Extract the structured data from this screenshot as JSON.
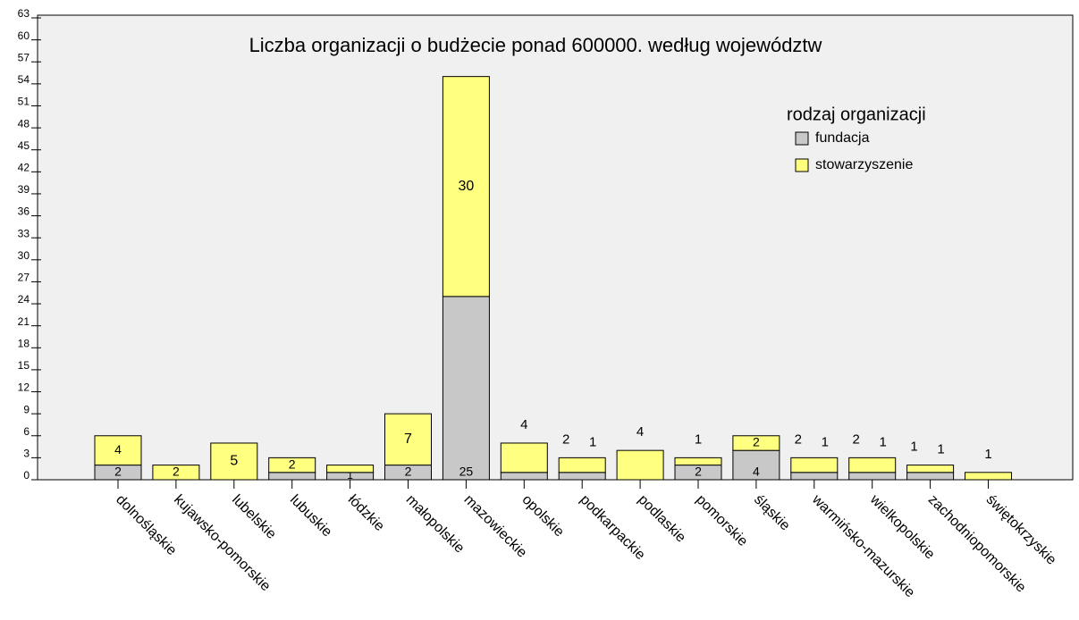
{
  "chart_data": {
    "type": "stacked_bar",
    "title": "Liczba organizacji o budżecie ponad 600000. według województw",
    "legend_title": "rodzaj organizacji",
    "categories": [
      "dolnośląskie",
      "kujawsko-pomorskie",
      "lubelskie",
      "lubuskie",
      "łódzkie",
      "małopolskie",
      "mazowieckie",
      "opolskie",
      "podkarpackie",
      "podlaskie",
      "pomorskie",
      "śląskie",
      "warmińsko-mazurskie",
      "wielkopolskie",
      "zachodniopomorskie",
      "świętokrzyskie"
    ],
    "series": [
      {
        "name": "fundacja",
        "color": "#c8c8c8",
        "values": [
          2,
          0,
          0,
          1,
          1,
          2,
          25,
          1,
          1,
          0,
          2,
          4,
          1,
          1,
          1,
          0
        ],
        "value_labels": [
          "2",
          null,
          null,
          null,
          "1",
          "2",
          "25",
          null,
          "1",
          null,
          "2",
          "4",
          "1",
          "1",
          "1",
          null
        ]
      },
      {
        "name": "stowarzyszenie",
        "color": "#ffff80",
        "values": [
          4,
          2,
          5,
          2,
          1,
          7,
          30,
          4,
          2,
          4,
          1,
          2,
          2,
          2,
          1,
          1
        ],
        "value_labels": [
          "4",
          "2",
          "5",
          "2",
          null,
          "7",
          "30",
          "4",
          "2",
          "4",
          "1",
          "2",
          "2",
          "2",
          "1",
          "1"
        ]
      }
    ],
    "ylim": [
      0,
      63
    ],
    "yticks": [
      0,
      3,
      6,
      9,
      12,
      15,
      18,
      21,
      24,
      27,
      30,
      33,
      36,
      39,
      42,
      45,
      48,
      51,
      54,
      57,
      60,
      63
    ],
    "grid": false
  }
}
